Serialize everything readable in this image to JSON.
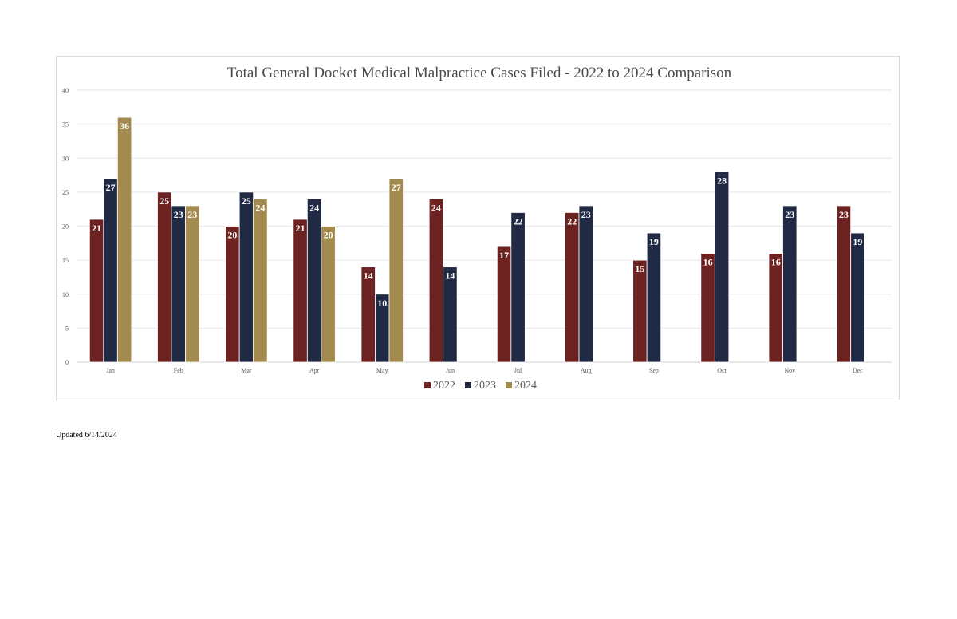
{
  "footer": {
    "updated_text": "Updated 6/14/2024"
  },
  "chart_data": {
    "type": "bar",
    "title": "Total General Docket Medical Malpractice Cases Filed - 2022 to 2024 Comparison",
    "xlabel": "",
    "ylabel": "",
    "ylim": [
      0,
      40
    ],
    "yticks": [
      0,
      5,
      10,
      15,
      20,
      25,
      30,
      35,
      40
    ],
    "grid": true,
    "legend_position": "bottom",
    "categories": [
      "Jan",
      "Feb",
      "Mar",
      "Apr",
      "May",
      "Jun",
      "Jul",
      "Aug",
      "Sep",
      "Oct",
      "Nov",
      "Dec"
    ],
    "series": [
      {
        "name": "2022",
        "color": "#6b2220",
        "values": [
          21,
          25,
          20,
          21,
          14,
          24,
          17,
          22,
          15,
          16,
          16,
          23
        ]
      },
      {
        "name": "2023",
        "color": "#212a45",
        "values": [
          27,
          23,
          25,
          24,
          10,
          14,
          22,
          23,
          19,
          28,
          23,
          19
        ]
      },
      {
        "name": "2024",
        "color": "#a38b4f",
        "values": [
          36,
          23,
          24,
          20,
          27,
          null,
          null,
          null,
          null,
          null,
          null,
          null
        ]
      }
    ]
  }
}
